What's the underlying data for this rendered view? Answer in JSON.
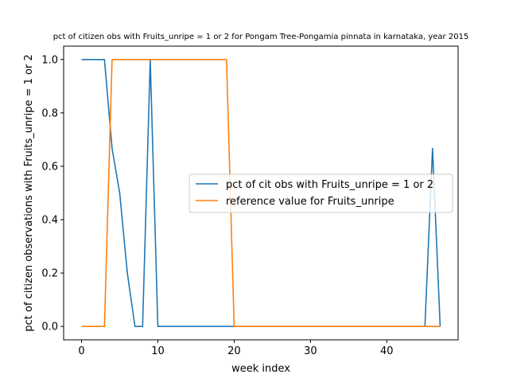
{
  "chart_data": {
    "type": "line",
    "title": "pct of citizen obs with Fruits_unripe = 1 or 2 for Pongam Tree-Pongamia pinnata in karnataka, year 2015",
    "xlabel": "week index",
    "ylabel": "pct of citizen observations with Fruits_unripe = 1 or 2",
    "xlim": [
      -2.35,
      49.35
    ],
    "ylim": [
      -0.05,
      1.05
    ],
    "xticks": [
      0,
      10,
      20,
      30,
      40
    ],
    "yticks": [
      0.0,
      0.2,
      0.4,
      0.6,
      0.8,
      1.0
    ],
    "ytick_labels": [
      "0.0",
      "0.2",
      "0.4",
      "0.6",
      "0.8",
      "1.0"
    ],
    "grid": false,
    "legend_position": "center-right",
    "series": [
      {
        "name": "pct of cit obs with Fruits_unripe = 1 or 2",
        "color": "#1f77b4",
        "x": [
          0,
          1,
          2,
          3,
          4,
          5,
          6,
          7,
          8,
          9,
          10,
          11,
          12,
          13,
          14,
          15,
          16,
          17,
          18,
          19,
          20,
          21,
          22,
          23,
          24,
          25,
          26,
          27,
          28,
          29,
          30,
          31,
          32,
          33,
          34,
          35,
          36,
          37,
          38,
          39,
          40,
          41,
          42,
          43,
          44,
          45,
          46,
          47
        ],
        "y": [
          1,
          1,
          1,
          1,
          0.667,
          0.5,
          0.2,
          0,
          0,
          1,
          0,
          0,
          0,
          0,
          0,
          0,
          0,
          0,
          0,
          0,
          0,
          0,
          0,
          0,
          0,
          0,
          0,
          0,
          0,
          0,
          0,
          0,
          0,
          0,
          0,
          0,
          0,
          0,
          0,
          0,
          0,
          0,
          0,
          0,
          0,
          0,
          0.667,
          0
        ]
      },
      {
        "name": "reference value for Fruits_unripe",
        "color": "#ff7f0e",
        "x": [
          0,
          1,
          2,
          3,
          4,
          5,
          6,
          7,
          8,
          9,
          10,
          11,
          12,
          13,
          14,
          15,
          16,
          17,
          18,
          19,
          20,
          21,
          22,
          23,
          24,
          25,
          26,
          27,
          28,
          29,
          30,
          31,
          32,
          33,
          34,
          35,
          36,
          37,
          38,
          39,
          40,
          41,
          42,
          43,
          44,
          45,
          46,
          47
        ],
        "y": [
          0,
          0,
          0,
          0,
          1,
          1,
          1,
          1,
          1,
          1,
          1,
          1,
          1,
          1,
          1,
          1,
          1,
          1,
          1,
          1,
          0,
          0,
          0,
          0,
          0,
          0,
          0,
          0,
          0,
          0,
          0,
          0,
          0,
          0,
          0,
          0,
          0,
          0,
          0,
          0,
          0,
          0,
          0,
          0,
          0,
          0,
          0,
          0
        ]
      }
    ]
  }
}
